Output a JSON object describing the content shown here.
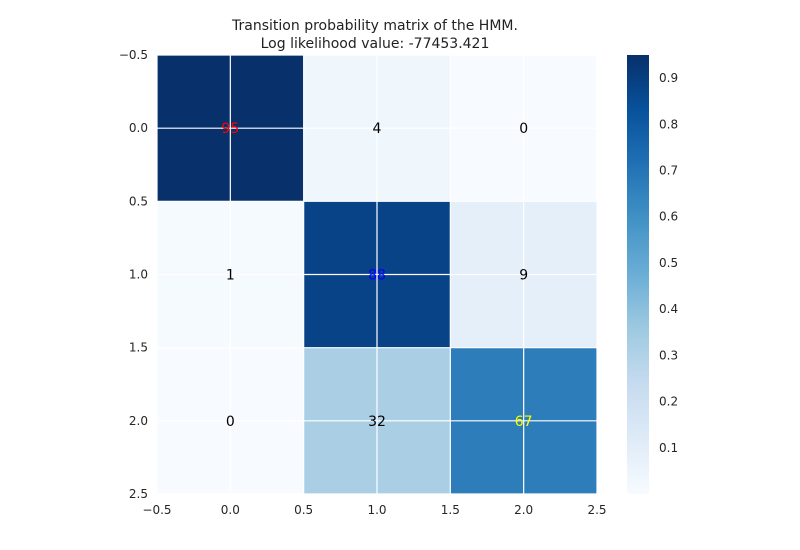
{
  "chart_data": {
    "type": "heatmap",
    "title": "Transition probability matrix of the HMM.",
    "subtitle": "Log likelihood value: -77453.421",
    "colormap": "Blues",
    "vmin": 0.0,
    "vmax": 0.95,
    "matrix": [
      [
        0.95,
        0.04,
        0.0
      ],
      [
        0.01,
        0.88,
        0.09
      ],
      [
        0.0,
        0.32,
        0.67
      ]
    ],
    "cell_labels": [
      [
        "95",
        "4",
        "0"
      ],
      [
        "1",
        "88",
        "9"
      ],
      [
        "0",
        "32",
        "67"
      ]
    ],
    "cell_label_colors": [
      [
        "#ff0000",
        "#000000",
        "#000000"
      ],
      [
        "#000000",
        "#0000ff",
        "#000000"
      ],
      [
        "#000000",
        "#000000",
        "#ffff00"
      ]
    ],
    "xlim": [
      -0.5,
      2.5
    ],
    "ylim": [
      2.5,
      -0.5
    ],
    "xticks": [
      "−0.5",
      "0.0",
      "0.5",
      "1.0",
      "1.5",
      "2.0",
      "2.5"
    ],
    "yticks": [
      "−0.5",
      "0.0",
      "0.5",
      "1.0",
      "1.5",
      "2.0",
      "2.5"
    ],
    "colorbar_ticks": [
      "0.1",
      "0.2",
      "0.3",
      "0.4",
      "0.5",
      "0.6",
      "0.7",
      "0.8",
      "0.9"
    ],
    "grid": true,
    "xlabel": "",
    "ylabel": ""
  }
}
